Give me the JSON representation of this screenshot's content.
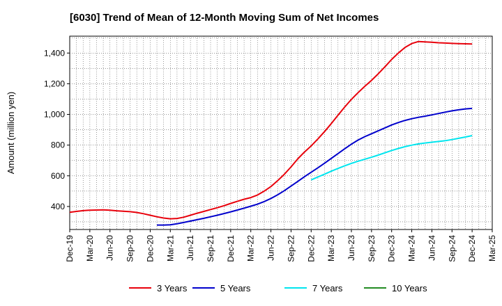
{
  "chart_data": {
    "type": "line",
    "title": "[6030]  Trend of Mean of 12-Month Moving Sum of Net Incomes",
    "ylabel": "Amount (million yen)",
    "xlabel": "",
    "ylim": [
      250,
      1510
    ],
    "yticks": [
      400,
      600,
      800,
      1000,
      1200,
      1400
    ],
    "ytick_labels": [
      "400",
      "600",
      "800",
      "1,000",
      "1,200",
      "1,400"
    ],
    "x_range": [
      "2019-12",
      "2025-03"
    ],
    "x_tick_labels": [
      "Dec-19",
      "Mar-20",
      "Jun-20",
      "Sep-20",
      "Dec-20",
      "Mar-21",
      "Jun-21",
      "Sep-21",
      "Dec-21",
      "Mar-22",
      "Jun-22",
      "Sep-22",
      "Dec-22",
      "Mar-23",
      "Jun-23",
      "Sep-23",
      "Dec-23",
      "Mar-24",
      "Jun-24",
      "Sep-24",
      "Dec-24",
      "Mar-25"
    ],
    "grid": true,
    "legend_position": "bottom",
    "series": [
      {
        "name": "3 Years",
        "color": "#e8000b",
        "points": [
          [
            "2019-12",
            362
          ],
          [
            "2020-01",
            368
          ],
          [
            "2020-02",
            373
          ],
          [
            "2020-03",
            376
          ],
          [
            "2020-04",
            377
          ],
          [
            "2020-05",
            378
          ],
          [
            "2020-06",
            376
          ],
          [
            "2020-07",
            372
          ],
          [
            "2020-08",
            369
          ],
          [
            "2020-09",
            366
          ],
          [
            "2020-10",
            361
          ],
          [
            "2020-11",
            353
          ],
          [
            "2020-12",
            343
          ],
          [
            "2021-01",
            333
          ],
          [
            "2021-02",
            325
          ],
          [
            "2021-03",
            320
          ],
          [
            "2021-04",
            322
          ],
          [
            "2021-05",
            330
          ],
          [
            "2021-06",
            343
          ],
          [
            "2021-07",
            356
          ],
          [
            "2021-08",
            368
          ],
          [
            "2021-09",
            380
          ],
          [
            "2021-10",
            392
          ],
          [
            "2021-11",
            405
          ],
          [
            "2021-12",
            420
          ],
          [
            "2022-01",
            434
          ],
          [
            "2022-02",
            447
          ],
          [
            "2022-03",
            458
          ],
          [
            "2022-04",
            475
          ],
          [
            "2022-05",
            500
          ],
          [
            "2022-06",
            530
          ],
          [
            "2022-07",
            568
          ],
          [
            "2022-08",
            610
          ],
          [
            "2022-09",
            658
          ],
          [
            "2022-10",
            710
          ],
          [
            "2022-11",
            755
          ],
          [
            "2022-12",
            795
          ],
          [
            "2023-01",
            840
          ],
          [
            "2023-02",
            888
          ],
          [
            "2023-03",
            940
          ],
          [
            "2023-04",
            995
          ],
          [
            "2023-05",
            1048
          ],
          [
            "2023-06",
            1098
          ],
          [
            "2023-07",
            1142
          ],
          [
            "2023-08",
            1183
          ],
          [
            "2023-09",
            1222
          ],
          [
            "2023-10",
            1265
          ],
          [
            "2023-11",
            1310
          ],
          [
            "2023-12",
            1358
          ],
          [
            "2024-01",
            1400
          ],
          [
            "2024-02",
            1437
          ],
          [
            "2024-03",
            1462
          ],
          [
            "2024-04",
            1475
          ],
          [
            "2024-05",
            1473
          ],
          [
            "2024-06",
            1470
          ],
          [
            "2024-07",
            1467
          ],
          [
            "2024-08",
            1465
          ],
          [
            "2024-09",
            1463
          ],
          [
            "2024-10",
            1461
          ],
          [
            "2024-11",
            1460
          ],
          [
            "2024-12",
            1459
          ]
        ]
      },
      {
        "name": "5 Years",
        "color": "#0000cc",
        "points": [
          [
            "2021-01",
            279
          ],
          [
            "2021-02",
            279
          ],
          [
            "2021-03",
            281
          ],
          [
            "2021-04",
            287
          ],
          [
            "2021-05",
            296
          ],
          [
            "2021-06",
            305
          ],
          [
            "2021-07",
            314
          ],
          [
            "2021-08",
            323
          ],
          [
            "2021-09",
            333
          ],
          [
            "2021-10",
            343
          ],
          [
            "2021-11",
            354
          ],
          [
            "2021-12",
            365
          ],
          [
            "2022-01",
            377
          ],
          [
            "2022-02",
            389
          ],
          [
            "2022-03",
            402
          ],
          [
            "2022-04",
            415
          ],
          [
            "2022-05",
            432
          ],
          [
            "2022-06",
            452
          ],
          [
            "2022-07",
            476
          ],
          [
            "2022-08",
            503
          ],
          [
            "2022-09",
            533
          ],
          [
            "2022-10",
            563
          ],
          [
            "2022-11",
            594
          ],
          [
            "2022-12",
            623
          ],
          [
            "2023-01",
            652
          ],
          [
            "2023-02",
            682
          ],
          [
            "2023-03",
            713
          ],
          [
            "2023-04",
            745
          ],
          [
            "2023-05",
            776
          ],
          [
            "2023-06",
            806
          ],
          [
            "2023-07",
            833
          ],
          [
            "2023-08",
            855
          ],
          [
            "2023-09",
            874
          ],
          [
            "2023-10",
            893
          ],
          [
            "2023-11",
            912
          ],
          [
            "2023-12",
            931
          ],
          [
            "2024-01",
            947
          ],
          [
            "2024-02",
            961
          ],
          [
            "2024-03",
            972
          ],
          [
            "2024-04",
            981
          ],
          [
            "2024-05",
            989
          ],
          [
            "2024-06",
            997
          ],
          [
            "2024-07",
            1006
          ],
          [
            "2024-08",
            1015
          ],
          [
            "2024-09",
            1023
          ],
          [
            "2024-10",
            1030
          ],
          [
            "2024-11",
            1036
          ],
          [
            "2024-12",
            1039
          ]
        ]
      },
      {
        "name": "7 Years",
        "color": "#00e5ee",
        "points": [
          [
            "2022-12",
            573
          ],
          [
            "2023-01",
            592
          ],
          [
            "2023-02",
            611
          ],
          [
            "2023-03",
            630
          ],
          [
            "2023-04",
            648
          ],
          [
            "2023-05",
            665
          ],
          [
            "2023-06",
            681
          ],
          [
            "2023-07",
            695
          ],
          [
            "2023-08",
            708
          ],
          [
            "2023-09",
            721
          ],
          [
            "2023-10",
            735
          ],
          [
            "2023-11",
            750
          ],
          [
            "2023-12",
            765
          ],
          [
            "2024-01",
            778
          ],
          [
            "2024-02",
            790
          ],
          [
            "2024-03",
            800
          ],
          [
            "2024-04",
            808
          ],
          [
            "2024-05",
            814
          ],
          [
            "2024-06",
            819
          ],
          [
            "2024-07",
            824
          ],
          [
            "2024-08",
            829
          ],
          [
            "2024-09",
            836
          ],
          [
            "2024-10",
            844
          ],
          [
            "2024-11",
            853
          ],
          [
            "2024-12",
            862
          ]
        ]
      },
      {
        "name": "10 Years",
        "color": "#228b22",
        "points": []
      }
    ]
  }
}
